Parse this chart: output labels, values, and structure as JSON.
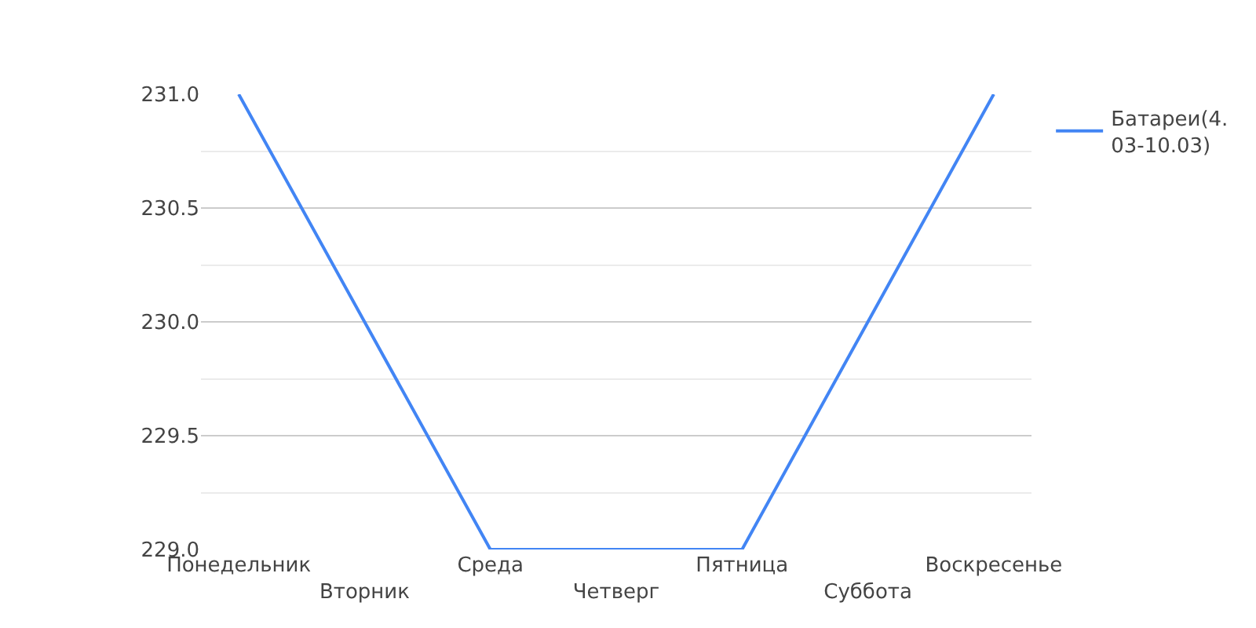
{
  "chart_data": {
    "type": "line",
    "categories": [
      "Понедельник",
      "Вторник",
      "Среда",
      "Четверг",
      "Пятница",
      "Суббота",
      "Воскресенье"
    ],
    "series": [
      {
        "name": "Батареи(4.03-10.03)",
        "color": "#4285f4",
        "values": [
          231,
          230,
          229,
          229,
          229,
          230,
          231
        ]
      }
    ],
    "ylim": [
      229,
      231
    ],
    "yticks": [
      {
        "value": 229,
        "label": "229.0"
      },
      {
        "value": 229.5,
        "label": "229.5"
      },
      {
        "value": 230,
        "label": "230.0"
      },
      {
        "value": 230.5,
        "label": "230.5"
      },
      {
        "value": 231,
        "label": "231.0"
      }
    ],
    "grid": "y",
    "legend": "right",
    "marker": "none",
    "line_style": "solid"
  }
}
